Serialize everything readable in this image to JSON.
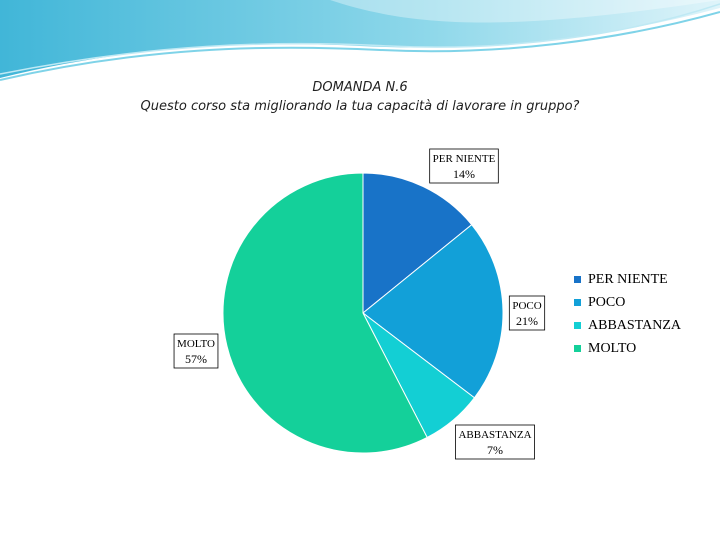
{
  "title": {
    "line1": "DOMANDA N.6",
    "line2": "Questo corso sta migliorando la tua capacità di lavorare in gruppo?"
  },
  "chart_data": {
    "type": "pie",
    "categories": [
      "PER NIENTE",
      "POCO",
      "ABBASTANZA",
      "MOLTO"
    ],
    "values": [
      14,
      21,
      7,
      57
    ],
    "labels": [
      "14%",
      "21%",
      "7%",
      "57%"
    ],
    "colors": [
      "#1873c8",
      "#12a0d8",
      "#13cfd4",
      "#14d09a"
    ],
    "legend_position": "right"
  }
}
